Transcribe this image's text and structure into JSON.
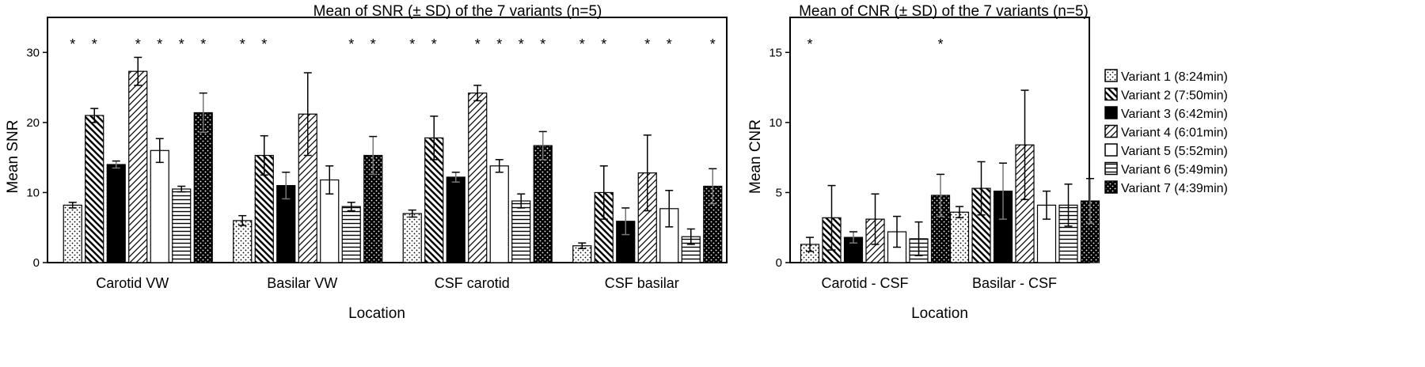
{
  "chart_data": [
    {
      "type": "bar",
      "title": "Mean of SNR (± SD) of the 7 variants (n=5)",
      "xlabel": "Location",
      "ylabel": "Mean SNR",
      "ylim": [
        0,
        35
      ],
      "yticks": [
        "0",
        "10",
        "20",
        "30"
      ],
      "categories": [
        "Carotid VW",
        "Basilar VW",
        "CSF carotid",
        "CSF basilar"
      ],
      "series": [
        {
          "name": "Variant 1 (8:24min)",
          "values": [
            8.2,
            6.0,
            7.0,
            2.4
          ],
          "sd": [
            0.4,
            0.7,
            0.5,
            0.4
          ]
        },
        {
          "name": "Variant 2 (7:50min)",
          "values": [
            21.0,
            15.3,
            17.8,
            10.0
          ],
          "sd": [
            1.0,
            2.8,
            3.1,
            3.8
          ]
        },
        {
          "name": "Variant 3 (6:42min)",
          "values": [
            14.0,
            11.0,
            12.2,
            5.9
          ],
          "sd": [
            0.5,
            1.9,
            0.7,
            1.9
          ]
        },
        {
          "name": "Variant 4 (6:01min)",
          "values": [
            27.3,
            21.2,
            24.2,
            12.8
          ],
          "sd": [
            2.0,
            5.9,
            1.1,
            5.4
          ]
        },
        {
          "name": "Variant 5 (5:52min)",
          "values": [
            16.0,
            11.8,
            13.8,
            7.7
          ],
          "sd": [
            1.7,
            2.0,
            0.9,
            2.6
          ]
        },
        {
          "name": "Variant 6 (5:49min)",
          "values": [
            10.5,
            8.0,
            8.8,
            3.7
          ],
          "sd": [
            0.4,
            0.6,
            1.0,
            1.1
          ]
        },
        {
          "name": "Variant 7 (4:39min)",
          "values": [
            21.4,
            15.3,
            16.7,
            10.9
          ],
          "sd": [
            2.8,
            2.7,
            2.0,
            2.5
          ]
        }
      ],
      "significance": [
        {
          "category": "Carotid VW",
          "variants": [
            1,
            2,
            4,
            5,
            6,
            7
          ]
        },
        {
          "category": "Basilar VW",
          "variants": [
            1,
            2,
            6,
            7
          ]
        },
        {
          "category": "CSF carotid",
          "variants": [
            1,
            2,
            4,
            5,
            6,
            7
          ]
        },
        {
          "category": "CSF basilar",
          "variants": [
            1,
            2,
            4,
            5,
            7
          ]
        }
      ],
      "significance_symbol": "*"
    },
    {
      "type": "bar",
      "title": "Mean of CNR (± SD) of the 7 variants (n=5)",
      "xlabel": "Location",
      "ylabel": "Mean CNR",
      "ylim": [
        0,
        17.5
      ],
      "yticks": [
        "0",
        "5",
        "10",
        "15"
      ],
      "categories": [
        "Carotid - CSF",
        "Basilar - CSF"
      ],
      "series": [
        {
          "name": "Variant 1 (8:24min)",
          "values": [
            1.3,
            3.6
          ],
          "sd": [
            0.5,
            0.4
          ]
        },
        {
          "name": "Variant 2 (7:50min)",
          "values": [
            3.2,
            5.3
          ],
          "sd": [
            2.3,
            1.9
          ]
        },
        {
          "name": "Variant 3 (6:42min)",
          "values": [
            1.8,
            5.1
          ],
          "sd": [
            0.4,
            2.0
          ]
        },
        {
          "name": "Variant 4 (6:01min)",
          "values": [
            3.1,
            8.4
          ],
          "sd": [
            1.8,
            3.9
          ]
        },
        {
          "name": "Variant 5 (5:52min)",
          "values": [
            2.2,
            4.1
          ],
          "sd": [
            1.1,
            1.0
          ]
        },
        {
          "name": "Variant 6 (5:49min)",
          "values": [
            1.7,
            4.1
          ],
          "sd": [
            1.2,
            1.5
          ]
        },
        {
          "name": "Variant 7 (4:39min)",
          "values": [
            4.8,
            4.4
          ],
          "sd": [
            1.5,
            1.6
          ]
        }
      ],
      "significance": [
        {
          "category": "Carotid - CSF",
          "variants": [
            1,
            7
          ]
        }
      ],
      "significance_symbol": "*"
    }
  ],
  "legend": {
    "items": [
      "Variant 1 (8:24min)",
      "Variant 2 (7:50min)",
      "Variant 3 (6:42min)",
      "Variant 4 (6:01min)",
      "Variant 5 (5:52min)",
      "Variant 6 (5:49min)",
      "Variant 7 (4:39min)"
    ]
  }
}
